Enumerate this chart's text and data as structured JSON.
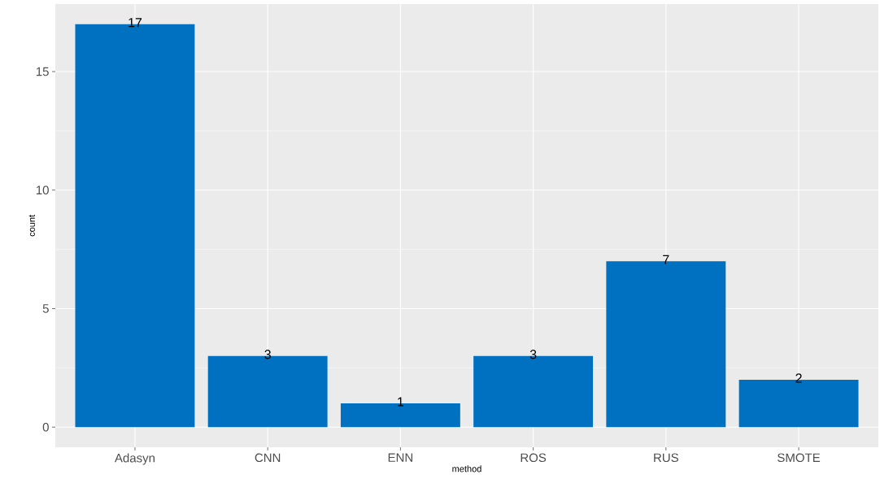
{
  "chart_data": {
    "type": "bar",
    "xlabel": "method",
    "ylabel": "count",
    "categories": [
      "Adasyn",
      "CNN",
      "ENN",
      "ROS",
      "RUS",
      "SMOTE"
    ],
    "values": [
      17,
      3,
      1,
      3,
      7,
      2
    ],
    "color": "#0070c0",
    "ylim": [
      -0.85,
      17.85
    ],
    "yticks": [
      0,
      5,
      10,
      15
    ],
    "grid": true,
    "data_labels": true
  }
}
